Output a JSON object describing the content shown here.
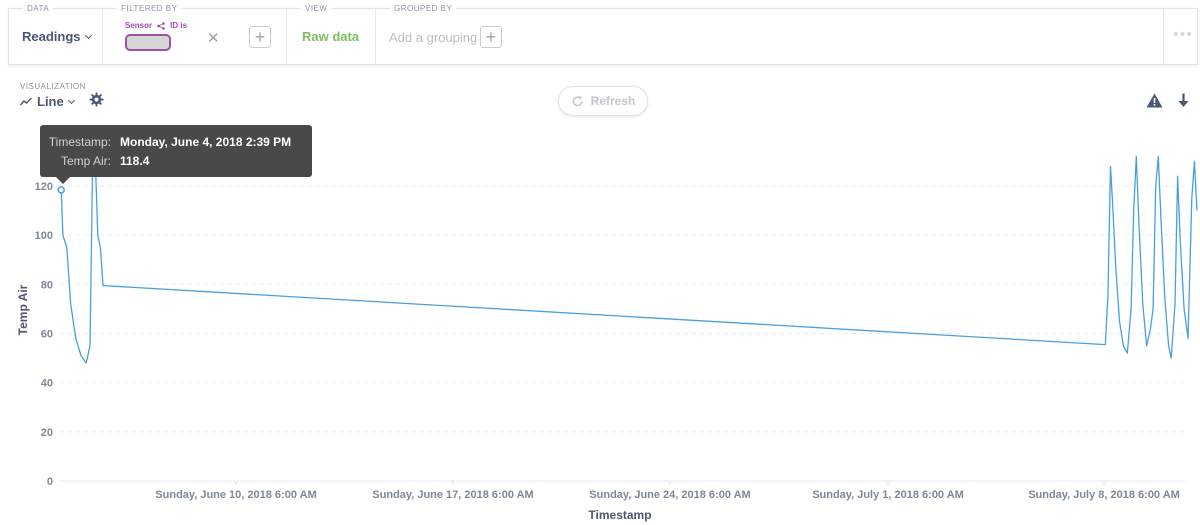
{
  "querybar": {
    "data": {
      "label": "DATA",
      "value": "Readings"
    },
    "filter": {
      "label": "FILTERED BY",
      "field": "Sensor",
      "op": "ID is"
    },
    "view": {
      "label": "VIEW",
      "value": "Raw data"
    },
    "group": {
      "label": "GROUPED BY",
      "placeholder": "Add a grouping"
    }
  },
  "visualization": {
    "label": "VISUALIZATION",
    "type": "Line"
  },
  "refresh": {
    "label": "Refresh"
  },
  "tooltip": {
    "timestamp_label": "Timestamp:",
    "timestamp_value": "Monday, June 4, 2018 2:39 PM",
    "value_label": "Temp Air:",
    "value": "118.4"
  },
  "colors": {
    "line": "#4a9ee0",
    "accent_green": "#7fbf5b",
    "filter_purple": "#a24cb0"
  },
  "chart_data": {
    "type": "line",
    "xlabel": "Timestamp",
    "ylabel": "Temp Air",
    "ylim": [
      0,
      140
    ],
    "yticks": [
      0,
      20,
      40,
      60,
      80,
      100,
      120
    ],
    "grid": true,
    "xticks": [
      "Sunday, June 10, 2018 6:00 AM",
      "Sunday, June 17, 2018 6:00 AM",
      "Sunday, June 24, 2018 6:00 AM",
      "Sunday, July 1, 2018 6:00 AM",
      "Sunday, July 8, 2018 6:00 AM"
    ],
    "series": [
      {
        "points": [
          [
            "2018-06-04 14:39",
            118.4
          ],
          [
            "2018-06-04 16:00",
            100
          ],
          [
            "2018-06-04 19:00",
            95
          ],
          [
            "2018-06-04 22:00",
            72
          ],
          [
            "2018-06-05 02:00",
            58
          ],
          [
            "2018-06-05 06:00",
            51
          ],
          [
            "2018-06-05 10:00",
            48
          ],
          [
            "2018-06-05 13:00",
            55
          ],
          [
            "2018-06-05 15:00",
            128
          ],
          [
            "2018-06-05 17:00",
            132
          ],
          [
            "2018-06-05 19:00",
            100
          ],
          [
            "2018-06-05 21:00",
            95
          ],
          [
            "2018-06-05 23:00",
            79.5
          ],
          [
            "2018-07-08 07:00",
            55.5
          ],
          [
            "2018-07-08 09:00",
            75
          ],
          [
            "2018-07-08 11:00",
            128
          ],
          [
            "2018-07-08 13:00",
            110
          ],
          [
            "2018-07-08 15:00",
            88
          ],
          [
            "2018-07-08 18:00",
            65
          ],
          [
            "2018-07-08 21:00",
            55
          ],
          [
            "2018-07-09 00:00",
            52
          ],
          [
            "2018-07-09 03:00",
            70
          ],
          [
            "2018-07-09 05:00",
            110
          ],
          [
            "2018-07-09 07:00",
            132
          ],
          [
            "2018-07-09 09:00",
            105
          ],
          [
            "2018-07-09 12:00",
            72
          ],
          [
            "2018-07-09 15:00",
            55
          ],
          [
            "2018-07-09 18:00",
            62
          ],
          [
            "2018-07-09 20:00",
            70
          ],
          [
            "2018-07-09 22:00",
            120
          ],
          [
            "2018-07-10 00:00",
            132
          ],
          [
            "2018-07-10 02:00",
            108
          ],
          [
            "2018-07-10 05:00",
            75
          ],
          [
            "2018-07-10 08:00",
            55
          ],
          [
            "2018-07-10 10:00",
            50
          ],
          [
            "2018-07-10 13:00",
            72
          ],
          [
            "2018-07-10 15:00",
            124
          ],
          [
            "2018-07-10 17:00",
            98
          ],
          [
            "2018-07-10 20:00",
            70
          ],
          [
            "2018-07-10 23:00",
            58
          ],
          [
            "2018-07-11 02:00",
            115
          ],
          [
            "2018-07-11 04:00",
            130
          ],
          [
            "2018-07-11 06:00",
            110
          ]
        ]
      }
    ]
  }
}
